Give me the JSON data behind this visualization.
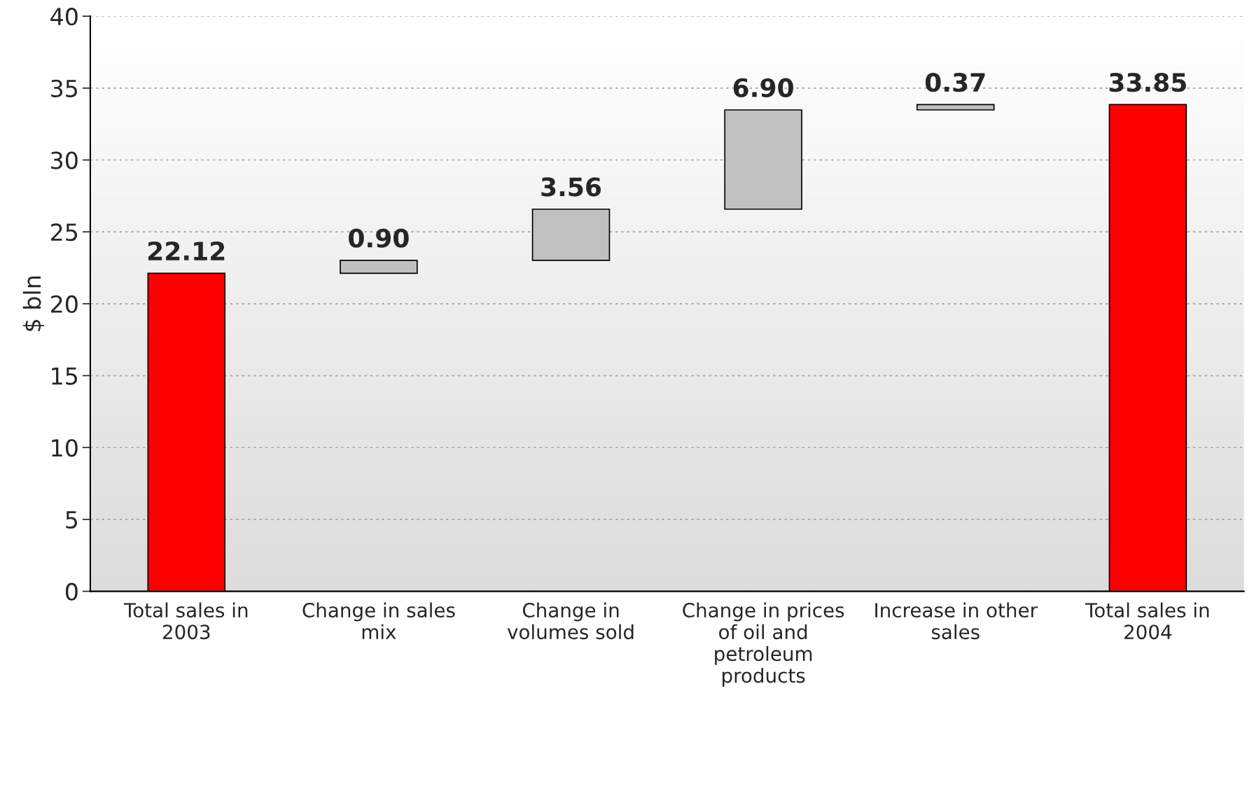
{
  "chart_data": {
    "type": "bar",
    "ylabel": "$ bln",
    "categories": [
      "Total sales in\n2003",
      "Change in sales\nmix",
      "Change in\nvolumes sold",
      "Change in prices\nof oil and\npetroleum\nproducts",
      "Increase in other\nsales",
      "Total sales in\n2004"
    ],
    "values": [
      22.12,
      0.9,
      3.56,
      6.9,
      0.37,
      33.85
    ],
    "base": [
      0,
      22.12,
      23.02,
      26.58,
      33.48,
      0
    ],
    "colors": [
      "#ff0000",
      "#c0c0c0",
      "#c0c0c0",
      "#c0c0c0",
      "#c0c0c0",
      "#ff0000"
    ],
    "value_labels": [
      "22.12",
      "0.90",
      "3.56",
      "6.90",
      "0.37",
      "33.85"
    ],
    "ylim": [
      0,
      40
    ],
    "yticks": [
      0,
      5,
      10,
      15,
      20,
      25,
      30,
      35,
      40
    ],
    "grid": "y"
  }
}
